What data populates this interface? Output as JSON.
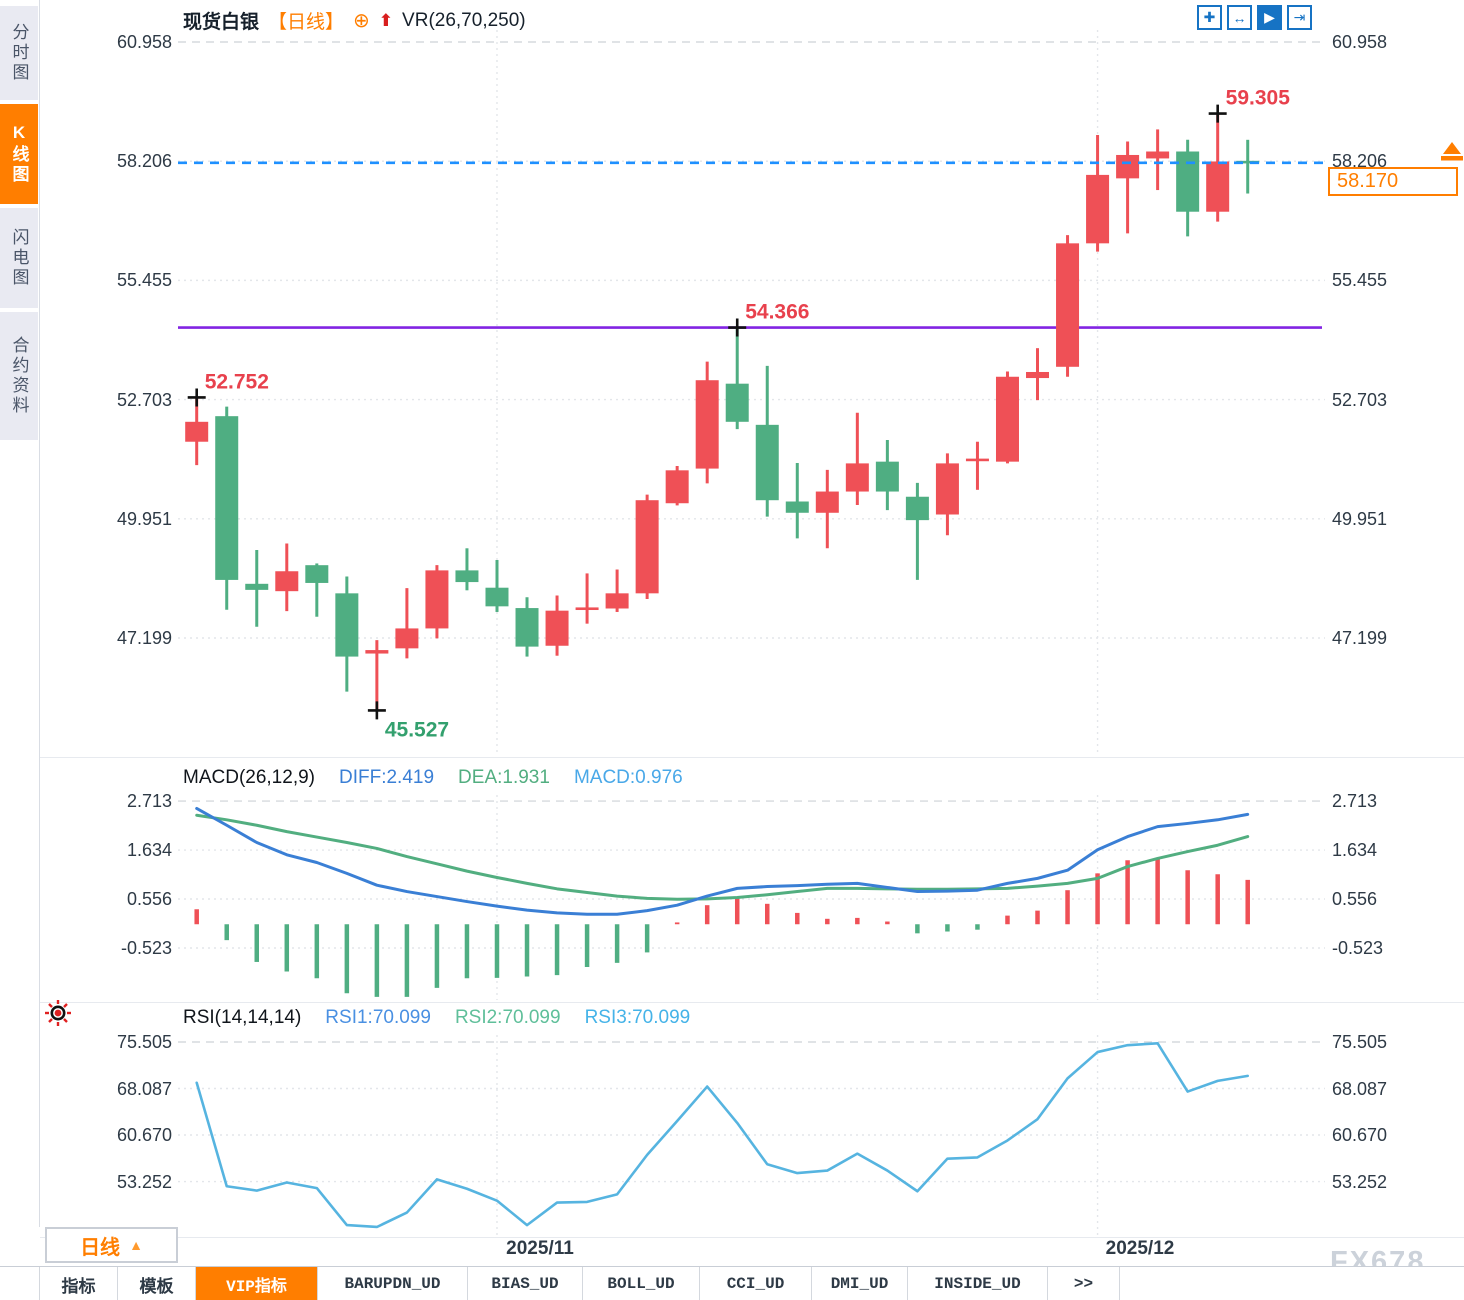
{
  "header": {
    "symbol": "现货白银",
    "timeframe_tag": "【日线】",
    "target_icon": "⊕",
    "signal_arrow_icon": "⬆",
    "indicator": "VR(26,70,250)"
  },
  "toolbar": {
    "icons": [
      {
        "name": "move-chart-icon",
        "glyph": "✚",
        "active": false
      },
      {
        "name": "scale-axis-icon",
        "glyph": "↔",
        "active": false
      },
      {
        "name": "auto-scale-icon",
        "glyph": "▶",
        "active": true
      },
      {
        "name": "go-to-latest-icon",
        "glyph": "⇥",
        "active": false
      }
    ]
  },
  "sidebar": {
    "items": [
      {
        "label": "分时图",
        "active": false
      },
      {
        "label": "K线图",
        "active": true
      },
      {
        "label": "闪电图",
        "active": false
      },
      {
        "label": "合约资料",
        "active": false
      }
    ]
  },
  "colors": {
    "up": "#ef5056",
    "down": "#4fae82",
    "diff": "#3a7fd5",
    "dea": "#52ae80",
    "rsi_line": "#56b4e0",
    "support": "#8224e3",
    "price_line": "#1e90ff",
    "accent": "#ff7e00",
    "ann_red": "#e8414d",
    "ann_green": "#33a06e"
  },
  "price_box": {
    "value": "58.170"
  },
  "timeframe_button": {
    "label": "日线",
    "arrow": "▲"
  },
  "x_axis_labels": [
    "2025/11",
    "2025/12"
  ],
  "watermark": "FX678",
  "bottom_tabs": [
    {
      "label": "指标",
      "active": false
    },
    {
      "label": "模板",
      "active": false
    },
    {
      "label": "VIP指标",
      "active": true
    },
    {
      "label": "BARUPDN_UD",
      "active": false
    },
    {
      "label": "BIAS_UD",
      "active": false
    },
    {
      "label": "BOLL_UD",
      "active": false
    },
    {
      "label": "CCI_UD",
      "active": false
    },
    {
      "label": "DMI_UD",
      "active": false
    },
    {
      "label": "INSIDE_UD",
      "active": false
    },
    {
      "label": ">>",
      "active": false
    }
  ],
  "chart_data": [
    {
      "type": "candlestick",
      "title": "现货白银 日线",
      "y_ticks": [
        "60.958",
        "58.206",
        "55.455",
        "52.703",
        "49.951",
        "47.199"
      ],
      "x_labels": [
        "2025/11",
        "2025/12"
      ],
      "x_gridline_indices": [
        10,
        30
      ],
      "support_line": 54.366,
      "current_price": 58.17,
      "ohlc": [
        [
          51.73,
          52.752,
          51.19,
          52.19
        ],
        [
          52.32,
          52.54,
          47.85,
          48.54
        ],
        [
          48.45,
          49.23,
          47.46,
          48.31
        ],
        [
          48.28,
          49.38,
          47.82,
          48.74
        ],
        [
          48.88,
          48.92,
          47.69,
          48.47
        ],
        [
          48.23,
          48.62,
          45.96,
          46.77
        ],
        [
          46.84,
          47.15,
          45.527,
          46.92
        ],
        [
          46.96,
          48.35,
          46.73,
          47.42
        ],
        [
          47.42,
          48.88,
          47.19,
          48.76
        ],
        [
          48.76,
          49.27,
          48.3,
          48.49
        ],
        [
          48.36,
          49.0,
          47.8,
          47.93
        ],
        [
          47.89,
          48.14,
          46.77,
          47.0
        ],
        [
          47.02,
          48.18,
          46.79,
          47.83
        ],
        [
          47.85,
          48.69,
          47.53,
          47.9
        ],
        [
          47.88,
          48.78,
          47.8,
          48.23
        ],
        [
          48.23,
          50.51,
          48.1,
          50.38
        ],
        [
          50.31,
          51.17,
          50.26,
          51.07
        ],
        [
          51.11,
          53.58,
          50.77,
          53.15
        ],
        [
          53.07,
          54.366,
          52.02,
          52.19
        ],
        [
          52.12,
          53.48,
          50.0,
          50.38
        ],
        [
          50.35,
          51.24,
          49.5,
          50.09
        ],
        [
          50.09,
          51.08,
          49.27,
          50.58
        ],
        [
          50.58,
          52.4,
          50.27,
          51.23
        ],
        [
          51.27,
          51.77,
          50.15,
          50.58
        ],
        [
          50.46,
          50.78,
          48.54,
          49.92
        ],
        [
          50.05,
          51.46,
          49.57,
          51.23
        ],
        [
          51.28,
          51.73,
          50.62,
          51.34
        ],
        [
          51.27,
          53.35,
          51.23,
          53.23
        ],
        [
          53.2,
          53.89,
          52.69,
          53.34
        ],
        [
          53.46,
          56.5,
          53.23,
          56.31
        ],
        [
          56.31,
          58.81,
          56.12,
          57.89
        ],
        [
          57.81,
          58.66,
          56.54,
          58.35
        ],
        [
          58.27,
          58.94,
          57.54,
          58.43
        ],
        [
          58.43,
          58.7,
          56.47,
          57.04
        ],
        [
          57.04,
          59.305,
          56.81,
          58.2
        ],
        [
          58.2,
          58.7,
          57.46,
          58.17
        ]
      ],
      "annotations": [
        {
          "index": 0,
          "side": "high",
          "text": "52.752",
          "color": "red"
        },
        {
          "index": 6,
          "side": "low",
          "text": "45.527",
          "color": "green"
        },
        {
          "index": 18,
          "side": "high",
          "text": "54.366",
          "color": "red"
        },
        {
          "index": 34,
          "side": "high",
          "text": "59.305",
          "color": "red"
        }
      ]
    },
    {
      "type": "bar+line",
      "name": "MACD(26,12,9)",
      "legend": [
        {
          "label": "DIFF:2.419",
          "color": "#3a7fd5"
        },
        {
          "label": "DEA:1.931",
          "color": "#52ae80"
        },
        {
          "label": "MACD:0.976",
          "color": "#49a8e8"
        }
      ],
      "y_ticks": [
        "2.713",
        "1.634",
        "0.556",
        "-0.523"
      ],
      "diff": [
        2.55,
        2.18,
        1.8,
        1.53,
        1.36,
        1.12,
        0.86,
        0.72,
        0.61,
        0.5,
        0.4,
        0.31,
        0.25,
        0.22,
        0.22,
        0.3,
        0.42,
        0.62,
        0.79,
        0.83,
        0.85,
        0.88,
        0.9,
        0.81,
        0.72,
        0.73,
        0.75,
        0.9,
        1.01,
        1.19,
        1.64,
        1.93,
        2.15,
        2.22,
        2.3,
        2.419
      ],
      "dea": [
        2.4,
        2.3,
        2.18,
        2.04,
        1.92,
        1.8,
        1.67,
        1.49,
        1.33,
        1.17,
        1.03,
        0.9,
        0.78,
        0.7,
        0.62,
        0.57,
        0.55,
        0.56,
        0.59,
        0.65,
        0.72,
        0.79,
        0.79,
        0.78,
        0.77,
        0.77,
        0.78,
        0.79,
        0.84,
        0.9,
        1.01,
        1.27,
        1.45,
        1.6,
        1.74,
        1.931
      ],
      "hist": [
        0.33,
        -0.35,
        -0.83,
        -1.04,
        -1.19,
        -1.52,
        -1.6,
        -1.6,
        -1.4,
        -1.19,
        -1.18,
        -1.15,
        -1.12,
        -0.94,
        -0.85,
        -0.62,
        0.04,
        0.42,
        0.57,
        0.45,
        0.25,
        0.12,
        0.14,
        0.06,
        -0.2,
        -0.16,
        -0.12,
        0.19,
        0.3,
        0.75,
        1.12,
        1.41,
        1.46,
        1.19,
        1.1,
        0.976
      ]
    },
    {
      "type": "line",
      "name": "RSI(14,14,14)",
      "legend": [
        {
          "label": "RSI1:70.099",
          "color": "#4a90e2"
        },
        {
          "label": "RSI2:70.099",
          "color": "#5fbf9a"
        },
        {
          "label": "RSI3:70.099",
          "color": "#45b3e8"
        }
      ],
      "y_ticks": [
        "75.505",
        "68.087",
        "60.670",
        "53.252"
      ],
      "rsi": [
        69.0,
        52.5,
        51.8,
        53.1,
        52.2,
        46.3,
        46.0,
        48.3,
        53.6,
        52.1,
        50.2,
        46.3,
        49.9,
        50.0,
        51.2,
        57.5,
        62.9,
        68.4,
        62.6,
        56.0,
        54.6,
        55.0,
        57.7,
        55.0,
        51.7,
        56.9,
        57.1,
        59.8,
        63.2,
        69.7,
        73.9,
        75.0,
        75.3,
        67.6,
        69.3,
        70.1
      ]
    }
  ]
}
